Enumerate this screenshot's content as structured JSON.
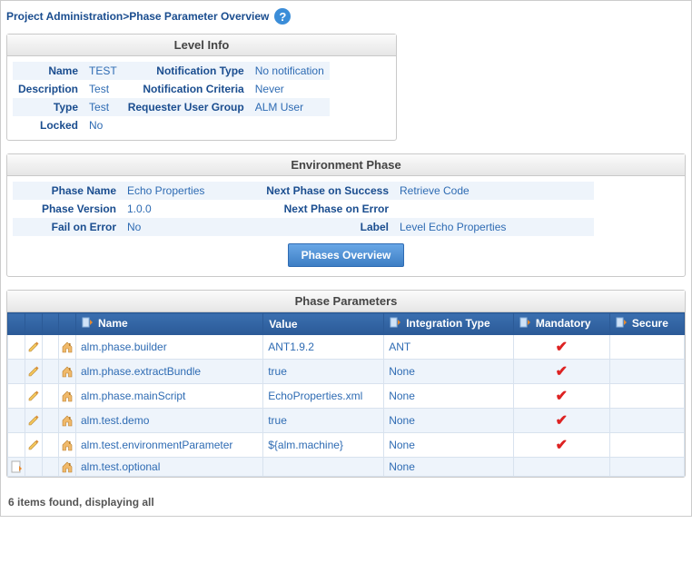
{
  "breadcrumb": "Project Administration>Phase Parameter Overview",
  "panels": {
    "levelInfo": {
      "title": "Level Info",
      "rows": [
        [
          {
            "l": "Name",
            "v": "TEST"
          },
          {
            "l": "Notification Type",
            "v": "No notification"
          }
        ],
        [
          {
            "l": "Description",
            "v": "Test"
          },
          {
            "l": "Notification Criteria",
            "v": "Never"
          }
        ],
        [
          {
            "l": "Type",
            "v": "Test"
          },
          {
            "l": "Requester User Group",
            "v": "ALM User"
          }
        ],
        [
          {
            "l": "Locked",
            "v": "No"
          }
        ]
      ]
    },
    "envPhase": {
      "title": "Environment Phase",
      "rows": [
        [
          {
            "l": "Phase Name",
            "v": "Echo Properties"
          },
          {
            "l": "Next Phase on Success",
            "v": "Retrieve Code"
          }
        ],
        [
          {
            "l": "Phase Version",
            "v": "1.0.0"
          },
          {
            "l": "Next Phase on Error",
            "v": ""
          }
        ],
        [
          {
            "l": "Fail on Error",
            "v": "No"
          },
          {
            "l": "Label",
            "v": "Level Echo Properties"
          }
        ]
      ],
      "button": "Phases Overview"
    },
    "params": {
      "title": "Phase Parameters",
      "columns": [
        "Name",
        "Value",
        "Integration Type",
        "Mandatory",
        "Secure"
      ],
      "rows": [
        {
          "edit": true,
          "glob": true,
          "name": "alm.phase.builder",
          "value": "ANT1.9.2",
          "itype": "ANT",
          "mandatory": true,
          "secure": false
        },
        {
          "edit": true,
          "glob": true,
          "name": "alm.phase.extractBundle",
          "value": "true",
          "itype": "None",
          "mandatory": true,
          "secure": false
        },
        {
          "edit": true,
          "glob": true,
          "name": "alm.phase.mainScript",
          "value": "EchoProperties.xml",
          "itype": "None",
          "mandatory": true,
          "secure": false
        },
        {
          "edit": true,
          "glob": true,
          "name": "alm.test.demo",
          "value": "true",
          "itype": "None",
          "mandatory": true,
          "secure": false
        },
        {
          "edit": true,
          "glob": true,
          "name": "alm.test.environmentParameter",
          "value": "${alm.machine}",
          "itype": "None",
          "mandatory": true,
          "secure": false
        },
        {
          "edit": false,
          "glob": true,
          "name": "alm.test.optional",
          "value": "",
          "itype": "None",
          "mandatory": false,
          "secure": false
        }
      ],
      "footer": "6 items found, displaying all"
    }
  },
  "colors": {
    "link": "#2e6bb3",
    "headerDark": "#1a4d8f",
    "rowAlt": "#eef4fb"
  }
}
